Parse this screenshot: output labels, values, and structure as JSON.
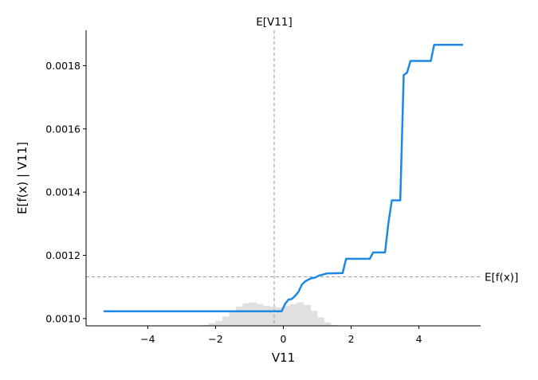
{
  "chart_data": {
    "type": "line",
    "xlabel": "V11",
    "ylabel": "E[f(x) | V11]",
    "xlim": [
      -5.82,
      5.82
    ],
    "ylim": [
      0.000977,
      0.001912
    ],
    "xticks": [
      -4,
      -2,
      0,
      2,
      4
    ],
    "xtick_labels": [
      "−4",
      "−2",
      "0",
      "2",
      "4"
    ],
    "yticks": [
      0.001,
      0.0012,
      0.0014,
      0.0016,
      0.0018
    ],
    "ytick_labels": [
      "0.0010",
      "0.0012",
      "0.0014",
      "0.0016",
      "0.0018"
    ],
    "grid": false,
    "series": [
      {
        "color": "#1e88e5",
        "x": [
          -5.3,
          -0.25,
          -0.05,
          0.05,
          0.15,
          0.25,
          0.35,
          0.45,
          0.55,
          0.65,
          0.75,
          0.85,
          0.95,
          1.05,
          1.3,
          1.4,
          1.75,
          1.85,
          2.55,
          2.65,
          3.0,
          3.1,
          3.2,
          3.45,
          3.55,
          3.65,
          3.75,
          4.35,
          4.45,
          5.3
        ],
        "y": [
          0.001023,
          0.001023,
          0.001023,
          0.001046,
          0.00106,
          0.001062,
          0.001072,
          0.001085,
          0.001108,
          0.001118,
          0.001124,
          0.001128,
          0.00113,
          0.001136,
          0.001143,
          0.001143,
          0.001144,
          0.001189,
          0.001189,
          0.001209,
          0.001209,
          0.001302,
          0.001374,
          0.001374,
          0.00177,
          0.001778,
          0.001815,
          0.001815,
          0.001866,
          0.001866
        ]
      }
    ],
    "histogram": {
      "color": "#e0e0e0",
      "bin_edges": [
        -2.6,
        -2.4,
        -2.2,
        -2.0,
        -1.8,
        -1.6,
        -1.4,
        -1.2,
        -1.0,
        -0.8,
        -0.6,
        -0.4,
        -0.2,
        0.0,
        0.2,
        0.4,
        0.6,
        0.8,
        1.0,
        1.2,
        1.4,
        1.6
      ],
      "heights": [
        0.2,
        0.5,
        1.5,
        3.0,
        5.5,
        9.0,
        11.5,
        13.5,
        14.0,
        13.0,
        12.0,
        11.5,
        11.0,
        12.0,
        13.0,
        14.0,
        12.5,
        9.0,
        5.0,
        2.0,
        0.5
      ]
    },
    "reference_lines": {
      "vertical": {
        "x": -0.27,
        "label": "E[V11]"
      },
      "horizontal": {
        "y": 0.001132,
        "label": "E[f(x)]"
      }
    }
  }
}
